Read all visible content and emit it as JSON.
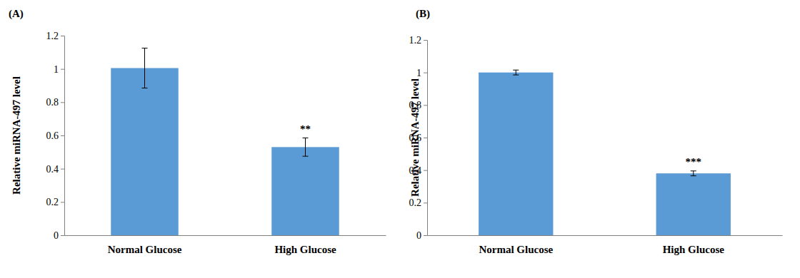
{
  "chart_data": [
    {
      "type": "bar",
      "title": "(A)",
      "y_label": "Relative miRNA-497 level",
      "categories": [
        "Normal Glucose",
        "High Glucose"
      ],
      "values": [
        1.005,
        0.53
      ],
      "errors": [
        0.12,
        0.055
      ],
      "significance": [
        null,
        "**"
      ],
      "color": "#5b9bd5",
      "ylim": [
        0,
        1.2
      ],
      "yticks": [
        0,
        0.2,
        0.4,
        0.6,
        0.8,
        1,
        1.2
      ],
      "grid": false
    },
    {
      "type": "bar",
      "title": "(B)",
      "y_label": "Relative miRNA-497 level",
      "categories": [
        "Normal Glucose",
        "High Glucose"
      ],
      "values": [
        1.0,
        0.38
      ],
      "errors": [
        0.015,
        0.015
      ],
      "significance": [
        null,
        "***"
      ],
      "color": "#5b9bd5",
      "ylim": [
        0,
        1.2
      ],
      "yticks": [
        0,
        0.2,
        0.4,
        0.6,
        0.8,
        1,
        1.2
      ],
      "grid": false
    }
  ]
}
